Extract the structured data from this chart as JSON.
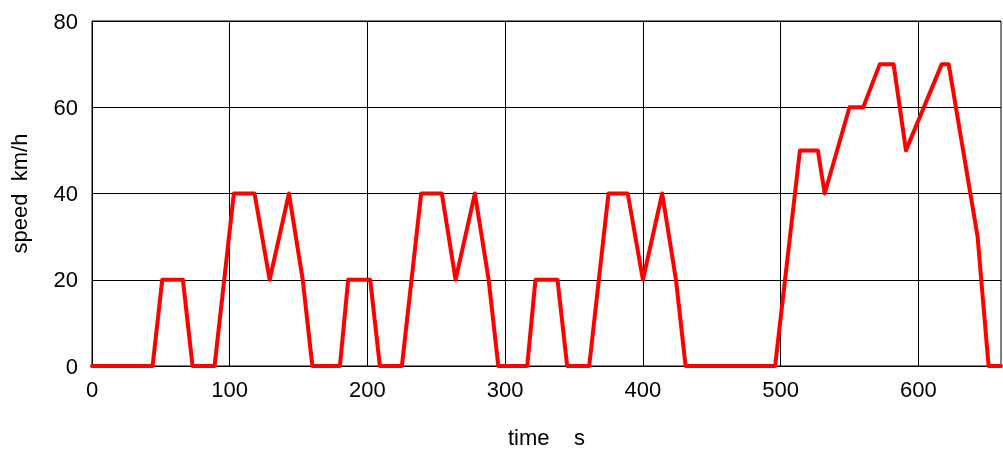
{
  "chart_data": {
    "type": "line",
    "xlabel": "time    s",
    "ylabel": "speed  km/h",
    "x": [
      0,
      44,
      51,
      66,
      73,
      89,
      103,
      118,
      129,
      143,
      153,
      160,
      180,
      186,
      202,
      209,
      225,
      239,
      254,
      264,
      278,
      288,
      295,
      316,
      322,
      338,
      345,
      361,
      375,
      389,
      400,
      414,
      424,
      431,
      496,
      514,
      527,
      532,
      550,
      560,
      572,
      582,
      591,
      617,
      622,
      643,
      651,
      660
    ],
    "series": [
      {
        "color": "#ff0000",
        "values": [
          0,
          0,
          20,
          20,
          0,
          0,
          40,
          40,
          20,
          40,
          20,
          0,
          0,
          20,
          20,
          0,
          0,
          40,
          40,
          20,
          40,
          20,
          0,
          0,
          20,
          20,
          0,
          0,
          40,
          40,
          20,
          40,
          20,
          0,
          0,
          50,
          50,
          40,
          60,
          60,
          70,
          70,
          50,
          70,
          70,
          30,
          0,
          0
        ]
      }
    ],
    "xlim": [
      0,
      660
    ],
    "xticks": [
      0,
      100,
      200,
      300,
      400,
      500,
      600
    ],
    "ylim": [
      0,
      80
    ],
    "yticks": [
      0,
      20,
      40,
      60,
      80
    ],
    "grid": true,
    "marker": "none",
    "line_style": "solid"
  }
}
